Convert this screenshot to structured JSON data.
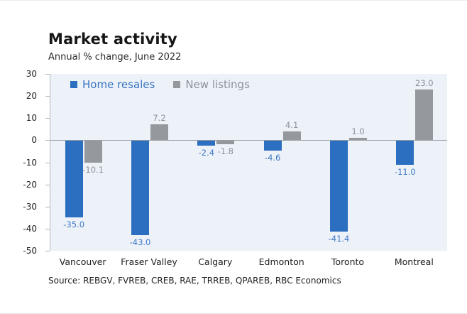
{
  "title": "Market activity",
  "subtitle": "Annual % change, June 2022",
  "source": "Source: REBGV, FVREB, CREB, RAE, TRREB, QPAREB, RBC Economics",
  "colors": {
    "plot_background": "#edf2f9",
    "zero_line": "#9aa0a5",
    "axis": "#b0b5ba",
    "text": "#1f1f1f"
  },
  "chart_data": {
    "type": "bar",
    "title": "Market activity",
    "subtitle": "Annual % change, June 2022",
    "categories": [
      "Vancouver",
      "Fraser Valley",
      "Calgary",
      "Edmonton",
      "Toronto",
      "Montreal"
    ],
    "series": [
      {
        "name": "Home resales",
        "color": "#2c6ebf",
        "label_color": "#4079c5",
        "values": [
          -35.0,
          -43.0,
          -2.4,
          -4.6,
          -41.4,
          -11.0
        ]
      },
      {
        "name": "New listings",
        "color": "#95999e",
        "label_color": "#8d9298",
        "values": [
          -10.1,
          7.2,
          -1.8,
          4.1,
          1.0,
          23.0
        ]
      }
    ],
    "ylim": [
      -50,
      30
    ],
    "yticks": [
      30,
      20,
      10,
      0,
      -10,
      -20,
      -30,
      -40,
      -50
    ],
    "xlabel": "",
    "ylabel": "",
    "grid": false,
    "legend_position": "top-inside",
    "data_labels": true,
    "label_format": "one-decimal"
  }
}
